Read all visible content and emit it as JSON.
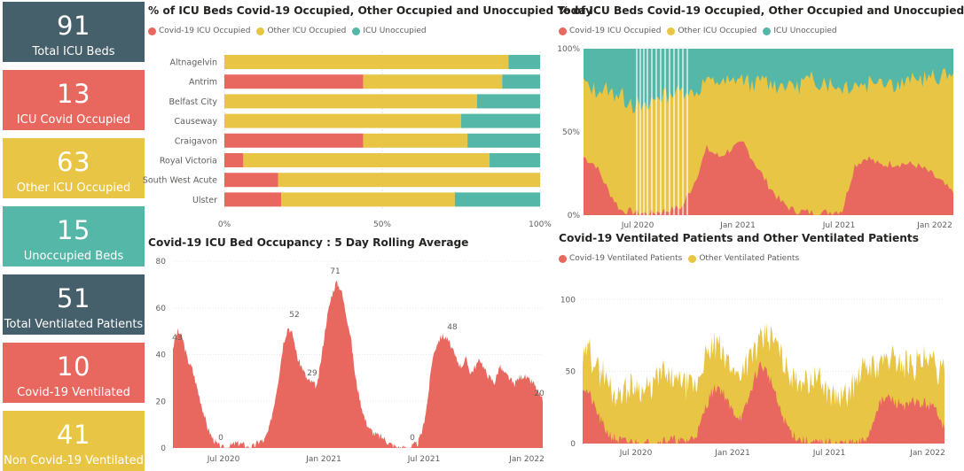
{
  "colors": {
    "covid": "#e8675e",
    "other": "#e8c545",
    "unocc": "#54b7a7",
    "dark": "#455f6b"
  },
  "kpis": [
    {
      "value": "91",
      "label": "Total ICU Beds",
      "color": "#455f6b"
    },
    {
      "value": "13",
      "label": "ICU Covid Occupied",
      "color": "#e8675e"
    },
    {
      "value": "63",
      "label": "Other ICU Occupied",
      "color": "#e8c545"
    },
    {
      "value": "15",
      "label": "Unoccupied Beds",
      "color": "#54b7a7"
    },
    {
      "value": "51",
      "label": "Total Ventilated Patients",
      "color": "#455f6b"
    },
    {
      "value": "10",
      "label": "Covid-19 Ventilated",
      "color": "#e8675e"
    },
    {
      "value": "41",
      "label": "Non Covid-19 Ventilated",
      "color": "#e8c545"
    }
  ],
  "legend_icu": [
    "Covid-19 ICU Occupied",
    "Other ICU Occupied",
    "ICU Unoccupied"
  ],
  "legend_vent": [
    "Covid-19 Ventilated Patients",
    "Other Ventilated Patients"
  ],
  "chart_data": [
    {
      "id": "today",
      "type": "bar",
      "orientation": "horizontal",
      "stacked": "100%",
      "title": "% of ICU Beds Covid-19 Occupied, Other Occupied and Unoccupied Today",
      "categories": [
        "Altnagelvin",
        "Antrim",
        "Belfast City",
        "Causeway",
        "Craigavon",
        "Royal Victoria",
        "South West Acute",
        "Ulster"
      ],
      "series": [
        {
          "name": "Covid-19 ICU Occupied",
          "values": [
            0,
            44,
            0,
            0,
            44,
            6,
            17,
            18
          ]
        },
        {
          "name": "Other ICU Occupied",
          "values": [
            90,
            44,
            80,
            75,
            33,
            78,
            83,
            55
          ]
        },
        {
          "name": "ICU Unoccupied",
          "values": [
            10,
            12,
            20,
            25,
            23,
            16,
            0,
            27
          ]
        }
      ],
      "x_ticks": [
        "0%",
        "50%",
        "100%"
      ],
      "xlim": [
        0,
        100
      ]
    },
    {
      "id": "history",
      "type": "area",
      "stacked": "100%",
      "title": "% of ICU Beds Covid-19 Occupied, Other Occupied and Unoccupied",
      "x_ticks": [
        "Jul 2020",
        "Jan 2021",
        "Jul 2021",
        "Jan 2022"
      ],
      "y_ticks": [
        "0%",
        "50%",
        "100%"
      ],
      "ylim": [
        0,
        100
      ],
      "series": [
        {
          "name": "Covid-19 ICU Occupied",
          "values": [
            35,
            30,
            15,
            3,
            2,
            1,
            2,
            3,
            5,
            20,
            40,
            35,
            40,
            43,
            30,
            18,
            8,
            3,
            2,
            1,
            2,
            3,
            30,
            35,
            30,
            31,
            31,
            30,
            26,
            20,
            13
          ]
        },
        {
          "name": "Other ICU Occupied",
          "values": [
            45,
            45,
            60,
            70,
            65,
            62,
            70,
            70,
            70,
            55,
            40,
            45,
            40,
            37,
            50,
            62,
            70,
            75,
            78,
            80,
            78,
            75,
            50,
            45,
            52,
            50,
            48,
            52,
            55,
            62,
            72
          ]
        },
        {
          "name": "ICU Unoccupied",
          "values": [
            20,
            25,
            25,
            27,
            33,
            37,
            28,
            27,
            25,
            25,
            20,
            20,
            20,
            20,
            20,
            20,
            22,
            22,
            20,
            19,
            20,
            22,
            20,
            20,
            18,
            19,
            21,
            18,
            19,
            18,
            15
          ]
        }
      ]
    },
    {
      "id": "rolling",
      "type": "area",
      "title": "Covid-19 ICU Bed Occupancy : 5 Day Rolling Average",
      "x_ticks": [
        "Jul 2020",
        "Jan 2021",
        "Jul 2021",
        "Jan 2022"
      ],
      "y_ticks": [
        "0",
        "20",
        "40",
        "60",
        "80"
      ],
      "ylim": [
        0,
        80
      ],
      "series": [
        {
          "name": "Covid-19 ICU Occupied",
          "values": [
            43,
            50,
            47,
            38,
            34,
            26,
            18,
            10,
            5,
            2,
            0,
            0,
            1,
            2,
            2,
            1,
            0,
            1,
            3,
            3,
            8,
            18,
            30,
            45,
            52,
            48,
            38,
            34,
            29,
            28,
            26,
            40,
            55,
            65,
            71,
            68,
            58,
            48,
            30,
            20,
            12,
            8,
            6,
            5,
            4,
            2,
            1,
            0,
            0,
            0,
            1,
            2,
            8,
            20,
            38,
            45,
            48,
            47,
            43,
            38,
            35,
            38,
            32,
            35,
            38,
            33,
            30,
            28,
            35,
            32,
            30,
            27,
            30,
            31,
            29,
            28,
            24,
            20
          ]
        }
      ],
      "data_labels": [
        {
          "text": "43",
          "value": 43
        },
        {
          "text": "0",
          "value": 0
        },
        {
          "text": "52",
          "value": 52
        },
        {
          "text": "29",
          "value": 29
        },
        {
          "text": "71",
          "value": 71
        },
        {
          "text": "0",
          "value": 0
        },
        {
          "text": "48",
          "value": 48
        },
        {
          "text": "20",
          "value": 20
        }
      ]
    },
    {
      "id": "ventilated",
      "type": "area",
      "stacked": true,
      "title": "Covid-19 Ventilated Patients and Other Ventilated Patients",
      "x_ticks": [
        "Jul 2020",
        "Jan 2021",
        "Jul 2021",
        "Jan 2022"
      ],
      "y_ticks": [
        "0",
        "50",
        "100"
      ],
      "ylim": [
        0,
        110
      ],
      "series": [
        {
          "name": "Covid-19 Ventilated Patients",
          "values": [
            40,
            35,
            25,
            15,
            8,
            4,
            2,
            1,
            1,
            0,
            0,
            0,
            0,
            2,
            3,
            2,
            1,
            2,
            4,
            10,
            25,
            35,
            40,
            35,
            25,
            20,
            18,
            30,
            45,
            55,
            50,
            40,
            25,
            15,
            8,
            4,
            2,
            1,
            0,
            0,
            0,
            0,
            0,
            0,
            0,
            0,
            2,
            10,
            25,
            30,
            32,
            28,
            28,
            25,
            30,
            27,
            28,
            25,
            22,
            10
          ]
        },
        {
          "name": "Other Ventilated Patients",
          "values": [
            20,
            30,
            30,
            35,
            37,
            31,
            33,
            34,
            39,
            40,
            35,
            37,
            45,
            48,
            42,
            40,
            42,
            38,
            36,
            35,
            35,
            30,
            30,
            25,
            30,
            30,
            32,
            27,
            20,
            15,
            25,
            32,
            40,
            38,
            40,
            42,
            43,
            42,
            45,
            40,
            35,
            33,
            30,
            32,
            38,
            45,
            50,
            45,
            30,
            27,
            25,
            32,
            28,
            30,
            25,
            30,
            28,
            30,
            30,
            40
          ]
        }
      ]
    }
  ]
}
